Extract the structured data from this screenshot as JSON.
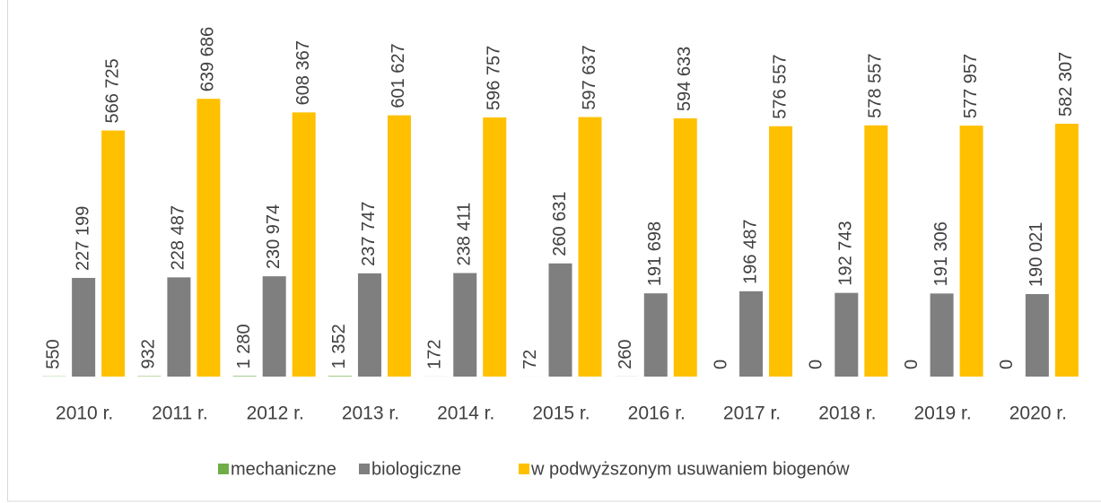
{
  "chart_data": {
    "type": "bar",
    "categories": [
      "2010 r.",
      "2011 r.",
      "2012 r.",
      "2013 r.",
      "2014 r.",
      "2015 r.",
      "2016 r.",
      "2017 r.",
      "2018 r.",
      "2019 r.",
      "2020 r."
    ],
    "series": [
      {
        "name": "mechaniczne",
        "color": "#70ad47",
        "values": [
          550,
          932,
          1280,
          1352,
          172,
          72,
          260,
          0,
          0,
          0,
          0
        ],
        "value_labels": [
          "550",
          "932",
          "1 280",
          "1 352",
          "172",
          "72",
          "260",
          "0",
          "0",
          "0",
          "0"
        ]
      },
      {
        "name": "biologiczne",
        "color": "#7f7f7f",
        "values": [
          227199,
          228487,
          230974,
          237747,
          238411,
          260631,
          191698,
          196487,
          192743,
          191306,
          190021
        ],
        "value_labels": [
          "227 199",
          "228 487",
          "230 974",
          "237 747",
          "238 411",
          "260 631",
          "191 698",
          "196 487",
          "192 743",
          "191 306",
          "190 021"
        ]
      },
      {
        "name": "w podwyższonym usuwaniem biogenów",
        "color": "#ffc000",
        "values": [
          566725,
          639686,
          608367,
          601627,
          596757,
          597637,
          594633,
          576557,
          578557,
          577957,
          582307
        ],
        "value_labels": [
          "566 725",
          "639 686",
          "608 367",
          "601 627",
          "596 757",
          "597 637",
          "594 633",
          "576 557",
          "578 557",
          "577 957",
          "582 307"
        ]
      }
    ],
    "ylim": [
      0,
      700000
    ],
    "legend": "bottom"
  }
}
